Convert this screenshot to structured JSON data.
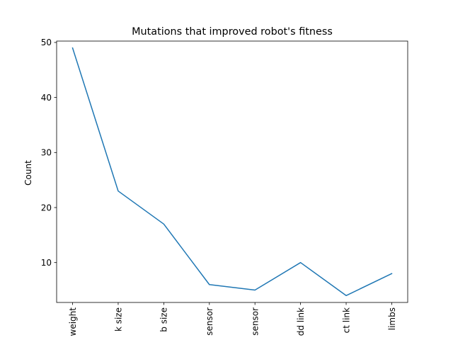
{
  "chart_data": {
    "type": "line",
    "title": "Mutations that improved robot's fitness",
    "xlabel": "",
    "ylabel": "Count",
    "categories": [
      "weight",
      "k size",
      "b size",
      "sensor",
      "sensor",
      "dd link",
      "ct link",
      "limbs"
    ],
    "series": [
      {
        "values": [
          49,
          23,
          17,
          6,
          5,
          10,
          4,
          8
        ],
        "color": "#1f77b4"
      }
    ],
    "ylim": [
      2.75,
      50.25
    ],
    "yticks": [
      10,
      20,
      30,
      40,
      50
    ],
    "grid": false,
    "legend": "none"
  }
}
